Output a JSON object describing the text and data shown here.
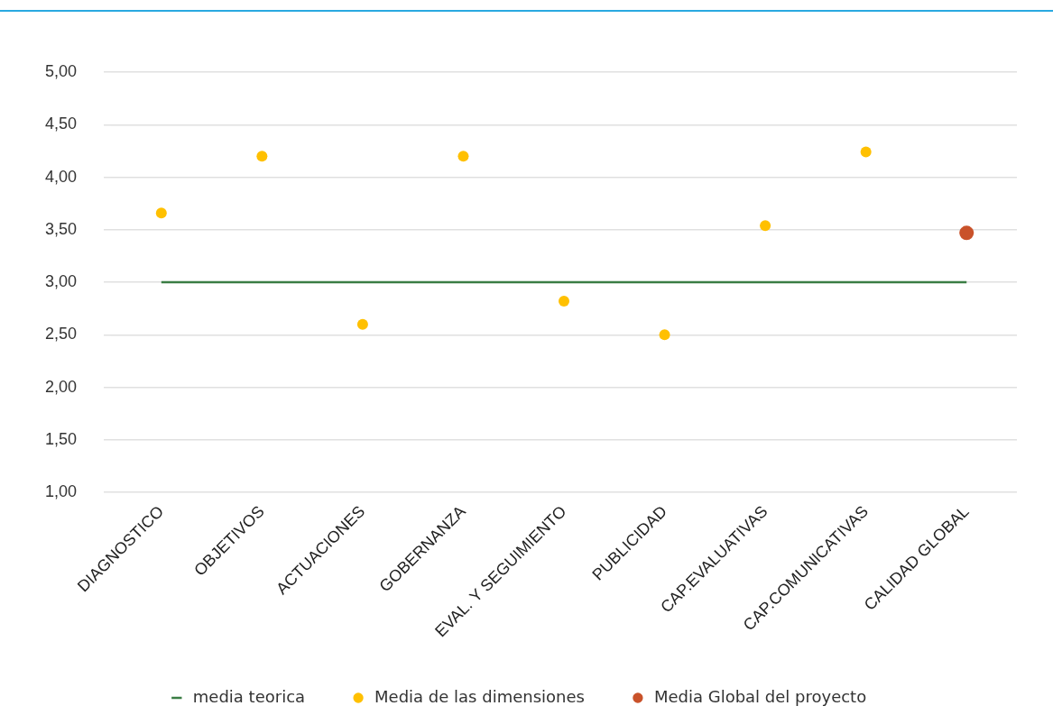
{
  "chart_data": {
    "type": "scatter",
    "categories": [
      "DIAGNOSTICO",
      "OBJETIVOS",
      "ACTUACIONES",
      "GOBERNANZA",
      "EVAL. Y SEGUIMIENTO",
      "PUBLICIDAD",
      "CAP.EVALUATIVAS",
      "CAP.COMUNICATIVAS",
      "CALIDAD GLOBAL"
    ],
    "series": [
      {
        "name": "media teorica",
        "type": "line",
        "color": "#3a7d44",
        "marker": "none",
        "line_style": "solid",
        "values": [
          3,
          3,
          3,
          3,
          3,
          3,
          3,
          3,
          3
        ]
      },
      {
        "name": "Media de las dimensiones",
        "color": "#ffc000",
        "marker": "circle",
        "values": [
          3.66,
          4.2,
          2.6,
          4.2,
          2.82,
          2.5,
          3.54,
          4.24,
          null
        ]
      },
      {
        "name": "Media Global del proyecto",
        "color": "#c9522a",
        "marker": "circle",
        "values": [
          null,
          null,
          null,
          null,
          null,
          null,
          null,
          null,
          3.47
        ]
      }
    ],
    "ylim": [
      1,
      5
    ],
    "yticks": [
      {
        "value": 1,
        "label": "1,00"
      },
      {
        "value": 1.5,
        "label": "1,50"
      },
      {
        "value": 2,
        "label": "2,00"
      },
      {
        "value": 2.5,
        "label": "2,50"
      },
      {
        "value": 3,
        "label": "3,00"
      },
      {
        "value": 3.5,
        "label": "3,50"
      },
      {
        "value": 4,
        "label": "4,00"
      },
      {
        "value": 4.5,
        "label": "4,50"
      },
      {
        "value": 5,
        "label": "5,00"
      }
    ],
    "grid": "y",
    "legend": "bottom"
  }
}
